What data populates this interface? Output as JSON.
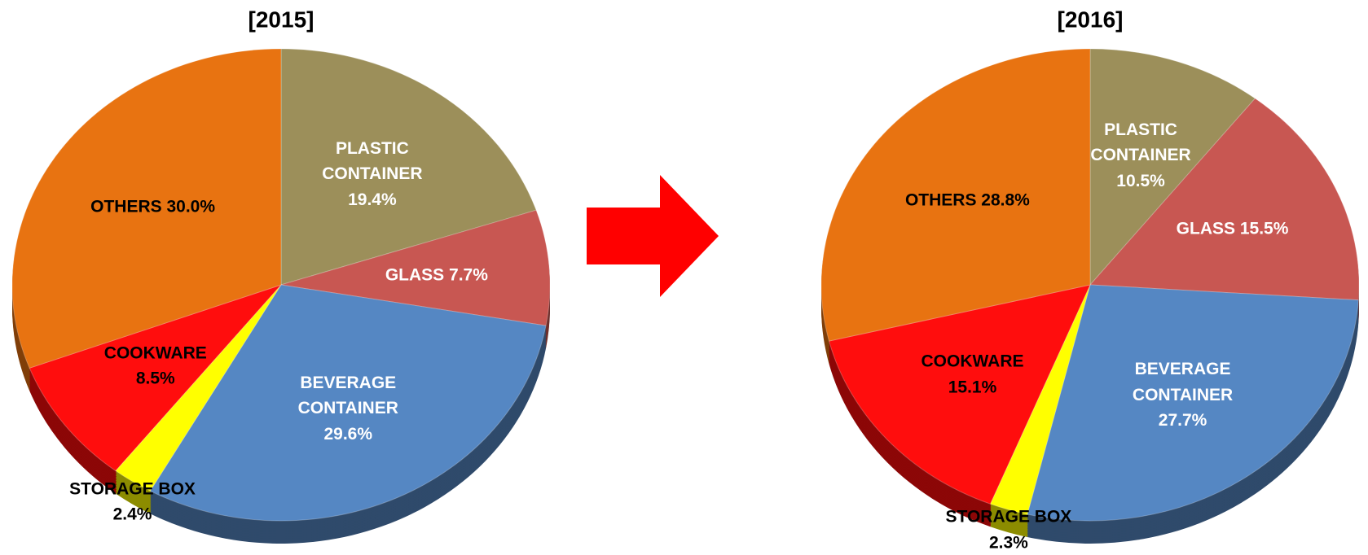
{
  "chart_data": [
    {
      "type": "pie",
      "title": "[2015]",
      "categories": [
        "PLASTIC CONTAINER",
        "GLASS",
        "BEVERAGE CONTAINER",
        "STORAGE BOX",
        "COOKWARE",
        "OTHERS"
      ],
      "values": [
        19.4,
        7.7,
        29.6,
        2.4,
        8.5,
        30.0
      ],
      "value_labels": [
        "19.4%",
        "7.7%",
        "29.6%",
        "2.4%",
        "8.5%",
        "30.0%"
      ],
      "colors": [
        "#9c8f5a",
        "#c85752",
        "#5587c3",
        "#ffff00",
        "#ff0d0d",
        "#e87311"
      ],
      "label_colors": [
        "#ffffff",
        "#ffffff",
        "#ffffff",
        "#000000",
        "#000000",
        "#000000"
      ]
    },
    {
      "type": "pie",
      "title": "[2016]",
      "categories": [
        "PLASTIC CONTAINER",
        "GLASS",
        "BEVERAGE CONTAINER",
        "STORAGE BOX",
        "COOKWARE",
        "OTHERS"
      ],
      "values": [
        10.5,
        15.5,
        27.7,
        2.3,
        15.1,
        28.8
      ],
      "value_labels": [
        "10.5%",
        "15.5%",
        "27.7%",
        "2.3%",
        "15.1%",
        "28.8%"
      ],
      "colors": [
        "#9c8f5a",
        "#c85752",
        "#5587c3",
        "#ffff00",
        "#ff0d0d",
        "#e87311"
      ],
      "label_colors": [
        "#ffffff",
        "#ffffff",
        "#ffffff",
        "#000000",
        "#000000",
        "#000000"
      ]
    }
  ]
}
